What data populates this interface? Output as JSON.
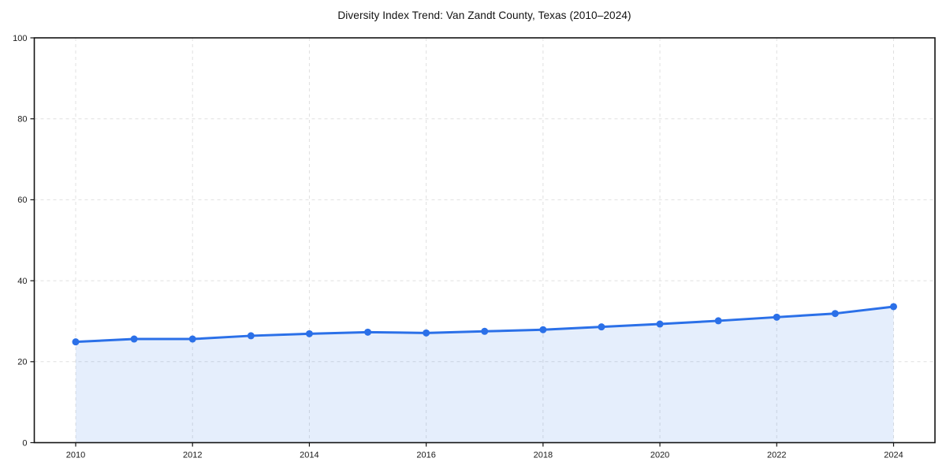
{
  "chart_data": {
    "type": "area",
    "title": "Diversity Index Trend: Van Zandt County, Texas (2010–2024)",
    "x": [
      2010,
      2011,
      2012,
      2013,
      2014,
      2015,
      2016,
      2017,
      2018,
      2019,
      2020,
      2021,
      2022,
      2023,
      2024
    ],
    "series": [
      {
        "name": "Diversity Index",
        "values": [
          24.9,
          25.6,
          25.6,
          26.4,
          26.9,
          27.3,
          27.1,
          27.5,
          27.9,
          28.6,
          29.3,
          30.1,
          31.0,
          31.9,
          33.6
        ]
      }
    ],
    "xlabel": "",
    "ylabel": "",
    "xlim": [
      2010,
      2024
    ],
    "ylim": [
      0,
      100
    ],
    "xticks": [
      2010,
      2012,
      2014,
      2016,
      2018,
      2020,
      2022,
      2024
    ],
    "yticks": [
      0,
      20,
      40,
      60,
      80,
      100
    ],
    "grid": true,
    "grid_style": "dashed",
    "legend": "none",
    "colors": {
      "line": "#2b70e8",
      "marker": "#2b70e8",
      "fill": "#2b70e8",
      "fill_opacity": 0.12,
      "gridline": "#e0e0e0",
      "spine": "#141414",
      "tick_label": "#1a1a1a",
      "background": "#ffffff"
    }
  }
}
